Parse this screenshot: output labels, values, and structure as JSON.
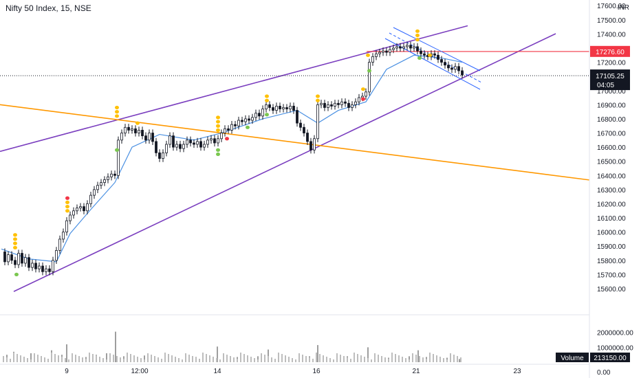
{
  "title": "Nifty 50 Index, 15, NSE",
  "chart_data": {
    "type": "candlestick",
    "currency": "INR",
    "price_axis": {
      "ticks": [
        15600,
        15700,
        15800,
        15900,
        16000,
        16100,
        16200,
        16300,
        16400,
        16500,
        16600,
        16700,
        16800,
        16900,
        17000,
        17100,
        17200,
        17300,
        17400,
        17500,
        17600
      ],
      "tick_labels": [
        "15600.00",
        "15700.00",
        "15800.00",
        "15900.00",
        "16000.00",
        "16100.00",
        "16200.00",
        "16300.00",
        "16400.00",
        "16500.00",
        "16600.00",
        "16700.00",
        "16800.00",
        "16900.00",
        "17000.00",
        "17100.00",
        "17200.00",
        "17300.00",
        "17400.00",
        "17500.00",
        "17600.00"
      ],
      "range": [
        15430,
        17640
      ]
    },
    "volume_axis": {
      "ticks": [
        1000000,
        2000000
      ],
      "tick_labels": [
        "1000000.00",
        "2000000.00"
      ],
      "zero_label": "0.00",
      "range": [
        0,
        3000000
      ]
    },
    "x_labels": [
      "9",
      "12:00",
      "14",
      "16",
      "21",
      "23"
    ],
    "price_tags": [
      {
        "label": "17276.60",
        "value": 17276.6,
        "color": "#f23645"
      },
      {
        "label": "17105.25",
        "sub": "04:05",
        "value": 17105.25,
        "color": "#131722"
      }
    ],
    "volume_label": "Volume",
    "volume_value": "213150.00",
    "close_series": [
      {
        "x": 0,
        "v": 15860
      },
      {
        "x": 5,
        "v": 15790
      },
      {
        "x": 10,
        "v": 15840
      },
      {
        "x": 15,
        "v": 15800
      },
      {
        "x": 20,
        "v": 15770
      },
      {
        "x": 25,
        "v": 15850
      },
      {
        "x": 30,
        "v": 15780
      },
      {
        "x": 35,
        "v": 15820
      },
      {
        "x": 40,
        "v": 15750
      },
      {
        "x": 45,
        "v": 15780
      },
      {
        "x": 50,
        "v": 15740
      },
      {
        "x": 55,
        "v": 15760
      },
      {
        "x": 60,
        "v": 15720
      },
      {
        "x": 65,
        "v": 15740
      },
      {
        "x": 70,
        "v": 15720
      },
      {
        "x": 75,
        "v": 15800
      },
      {
        "x": 80,
        "v": 15870
      },
      {
        "x": 85,
        "v": 15950
      },
      {
        "x": 90,
        "v": 16000
      },
      {
        "x": 95,
        "v": 16080
      },
      {
        "x": 100,
        "v": 16120
      },
      {
        "x": 105,
        "v": 16150
      },
      {
        "x": 110,
        "v": 16170
      },
      {
        "x": 115,
        "v": 16180
      },
      {
        "x": 120,
        "v": 16150
      },
      {
        "x": 125,
        "v": 16200
      },
      {
        "x": 130,
        "v": 16260
      },
      {
        "x": 135,
        "v": 16300
      },
      {
        "x": 140,
        "v": 16330
      },
      {
        "x": 145,
        "v": 16350
      },
      {
        "x": 150,
        "v": 16370
      },
      {
        "x": 155,
        "v": 16390
      },
      {
        "x": 160,
        "v": 16410
      },
      {
        "x": 165,
        "v": 16400
      },
      {
        "x": 170,
        "v": 16650
      },
      {
        "x": 175,
        "v": 16700
      },
      {
        "x": 180,
        "v": 16740
      },
      {
        "x": 185,
        "v": 16720
      },
      {
        "x": 190,
        "v": 16730
      },
      {
        "x": 195,
        "v": 16700
      },
      {
        "x": 200,
        "v": 16720
      },
      {
        "x": 205,
        "v": 16680
      },
      {
        "x": 210,
        "v": 16650
      },
      {
        "x": 215,
        "v": 16700
      },
      {
        "x": 220,
        "v": 16640
      },
      {
        "x": 225,
        "v": 16560
      },
      {
        "x": 230,
        "v": 16520
      },
      {
        "x": 235,
        "v": 16560
      },
      {
        "x": 240,
        "v": 16620
      },
      {
        "x": 245,
        "v": 16680
      },
      {
        "x": 250,
        "v": 16600
      },
      {
        "x": 255,
        "v": 16620
      },
      {
        "x": 260,
        "v": 16590
      },
      {
        "x": 265,
        "v": 16620
      },
      {
        "x": 270,
        "v": 16650
      },
      {
        "x": 275,
        "v": 16630
      },
      {
        "x": 280,
        "v": 16620
      },
      {
        "x": 285,
        "v": 16640
      },
      {
        "x": 290,
        "v": 16600
      },
      {
        "x": 295,
        "v": 16620
      },
      {
        "x": 300,
        "v": 16650
      },
      {
        "x": 305,
        "v": 16660
      },
      {
        "x": 310,
        "v": 16630
      },
      {
        "x": 315,
        "v": 16660
      },
      {
        "x": 320,
        "v": 16700
      },
      {
        "x": 325,
        "v": 16730
      },
      {
        "x": 330,
        "v": 16720
      },
      {
        "x": 335,
        "v": 16760
      },
      {
        "x": 340,
        "v": 16750
      },
      {
        "x": 345,
        "v": 16790
      },
      {
        "x": 350,
        "v": 16780
      },
      {
        "x": 355,
        "v": 16800
      },
      {
        "x": 360,
        "v": 16790
      },
      {
        "x": 365,
        "v": 16810
      },
      {
        "x": 370,
        "v": 16840
      },
      {
        "x": 375,
        "v": 16820
      },
      {
        "x": 380,
        "v": 16870
      },
      {
        "x": 385,
        "v": 16900
      },
      {
        "x": 390,
        "v": 16880
      },
      {
        "x": 395,
        "v": 16860
      },
      {
        "x": 400,
        "v": 16890
      },
      {
        "x": 405,
        "v": 16870
      },
      {
        "x": 410,
        "v": 16880
      },
      {
        "x": 415,
        "v": 16870
      },
      {
        "x": 420,
        "v": 16890
      },
      {
        "x": 425,
        "v": 16860
      },
      {
        "x": 430,
        "v": 16770
      },
      {
        "x": 435,
        "v": 16740
      },
      {
        "x": 440,
        "v": 16700
      },
      {
        "x": 445,
        "v": 16640
      },
      {
        "x": 450,
        "v": 16580
      },
      {
        "x": 455,
        "v": 16660
      },
      {
        "x": 460,
        "v": 16900
      },
      {
        "x": 465,
        "v": 16910
      },
      {
        "x": 470,
        "v": 16880
      },
      {
        "x": 475,
        "v": 16900
      },
      {
        "x": 480,
        "v": 16890
      },
      {
        "x": 485,
        "v": 16910
      },
      {
        "x": 490,
        "v": 16900
      },
      {
        "x": 495,
        "v": 16920
      },
      {
        "x": 500,
        "v": 16910
      },
      {
        "x": 505,
        "v": 16880
      },
      {
        "x": 510,
        "v": 16900
      },
      {
        "x": 515,
        "v": 16920
      },
      {
        "x": 520,
        "v": 16950
      },
      {
        "x": 525,
        "v": 16960
      },
      {
        "x": 530,
        "v": 16990
      },
      {
        "x": 535,
        "v": 17200
      },
      {
        "x": 540,
        "v": 17240
      },
      {
        "x": 545,
        "v": 17260
      },
      {
        "x": 550,
        "v": 17270
      },
      {
        "x": 555,
        "v": 17280
      },
      {
        "x": 560,
        "v": 17270
      },
      {
        "x": 565,
        "v": 17290
      },
      {
        "x": 570,
        "v": 17300
      },
      {
        "x": 575,
        "v": 17310
      },
      {
        "x": 580,
        "v": 17300
      },
      {
        "x": 585,
        "v": 17310
      },
      {
        "x": 590,
        "v": 17320
      },
      {
        "x": 595,
        "v": 17300
      },
      {
        "x": 600,
        "v": 17310
      },
      {
        "x": 605,
        "v": 17280
      },
      {
        "x": 610,
        "v": 17260
      },
      {
        "x": 615,
        "v": 17250
      },
      {
        "x": 620,
        "v": 17240
      },
      {
        "x": 625,
        "v": 17260
      },
      {
        "x": 630,
        "v": 17250
      },
      {
        "x": 635,
        "v": 17220
      },
      {
        "x": 640,
        "v": 17200
      },
      {
        "x": 645,
        "v": 17180
      },
      {
        "x": 650,
        "v": 17160
      },
      {
        "x": 655,
        "v": 17150
      },
      {
        "x": 660,
        "v": 17170
      },
      {
        "x": 665,
        "v": 17140
      },
      {
        "x": 670,
        "v": 17110
      }
    ],
    "moving_average": [
      {
        "x": 0,
        "v": 15880
      },
      {
        "x": 40,
        "v": 15810
      },
      {
        "x": 80,
        "v": 15790
      },
      {
        "x": 100,
        "v": 15990
      },
      {
        "x": 130,
        "v": 16160
      },
      {
        "x": 165,
        "v": 16350
      },
      {
        "x": 190,
        "v": 16600
      },
      {
        "x": 230,
        "v": 16690
      },
      {
        "x": 280,
        "v": 16650
      },
      {
        "x": 320,
        "v": 16700
      },
      {
        "x": 380,
        "v": 16800
      },
      {
        "x": 430,
        "v": 16860
      },
      {
        "x": 460,
        "v": 16770
      },
      {
        "x": 490,
        "v": 16860
      },
      {
        "x": 530,
        "v": 16920
      },
      {
        "x": 560,
        "v": 17150
      },
      {
        "x": 600,
        "v": 17250
      },
      {
        "x": 640,
        "v": 17230
      },
      {
        "x": 670,
        "v": 17200
      }
    ],
    "trend_lines": [
      {
        "name": "upper-channel",
        "color": "#7b3fbf",
        "x1": 0,
        "v1": 16570,
        "x2": 680,
        "v2": 17458
      },
      {
        "name": "lower-channel",
        "color": "#7b3fbf",
        "x1": 20,
        "v1": 15580,
        "x2": 808,
        "v2": 17402
      },
      {
        "name": "support-line",
        "color": "#ff9800",
        "x1": 0,
        "v1": 16900,
        "x2": 857,
        "v2": 16368
      },
      {
        "name": "resistance-level",
        "color": "#f23645",
        "x1": 533,
        "v1": 17276,
        "x2": 857,
        "v2": 17276
      }
    ],
    "volume_bars": [
      {
        "x": 10,
        "v": 500000
      },
      {
        "x": 20,
        "v": 700000
      },
      {
        "x": 30,
        "v": 450000
      },
      {
        "x": 45,
        "v": 600000
      },
      {
        "x": 60,
        "v": 350000
      },
      {
        "x": 75,
        "v": 800000
      },
      {
        "x": 90,
        "v": 500000
      },
      {
        "x": 97,
        "v": 1200000
      },
      {
        "x": 110,
        "v": 400000
      },
      {
        "x": 125,
        "v": 350000
      },
      {
        "x": 140,
        "v": 500000
      },
      {
        "x": 155,
        "v": 600000
      },
      {
        "x": 168,
        "v": 2050000
      },
      {
        "x": 180,
        "v": 400000
      },
      {
        "x": 195,
        "v": 300000
      },
      {
        "x": 210,
        "v": 450000
      },
      {
        "x": 225,
        "v": 350000
      },
      {
        "x": 240,
        "v": 600000
      },
      {
        "x": 255,
        "v": 300000
      },
      {
        "x": 270,
        "v": 250000
      },
      {
        "x": 285,
        "v": 350000
      },
      {
        "x": 300,
        "v": 300000
      },
      {
        "x": 316,
        "v": 1050000
      },
      {
        "x": 330,
        "v": 400000
      },
      {
        "x": 345,
        "v": 350000
      },
      {
        "x": 360,
        "v": 300000
      },
      {
        "x": 375,
        "v": 400000
      },
      {
        "x": 390,
        "v": 850000
      },
      {
        "x": 405,
        "v": 300000
      },
      {
        "x": 420,
        "v": 350000
      },
      {
        "x": 435,
        "v": 600000
      },
      {
        "x": 450,
        "v": 400000
      },
      {
        "x": 462,
        "v": 1150000
      },
      {
        "x": 475,
        "v": 300000
      },
      {
        "x": 490,
        "v": 350000
      },
      {
        "x": 505,
        "v": 400000
      },
      {
        "x": 520,
        "v": 450000
      },
      {
        "x": 535,
        "v": 1000000
      },
      {
        "x": 550,
        "v": 350000
      },
      {
        "x": 565,
        "v": 300000
      },
      {
        "x": 580,
        "v": 450000
      },
      {
        "x": 595,
        "v": 400000
      },
      {
        "x": 608,
        "v": 800000
      },
      {
        "x": 620,
        "v": 350000
      },
      {
        "x": 635,
        "v": 250000
      },
      {
        "x": 650,
        "v": 300000
      },
      {
        "x": 660,
        "v": 200000
      },
      {
        "x": 668,
        "v": 213150
      }
    ],
    "signal_dots": [
      {
        "x": 22,
        "v": 15980,
        "color": "#ffc107"
      },
      {
        "x": 22,
        "v": 15950,
        "color": "#ffc107"
      },
      {
        "x": 22,
        "v": 15920,
        "color": "#ffc107"
      },
      {
        "x": 22,
        "v": 15890,
        "color": "#ffc107"
      },
      {
        "x": 24,
        "v": 15700,
        "color": "#7ac74f"
      },
      {
        "x": 98,
        "v": 16240,
        "color": "#f23645"
      },
      {
        "x": 98,
        "v": 16210,
        "color": "#ffc107"
      },
      {
        "x": 98,
        "v": 16180,
        "color": "#ffc107"
      },
      {
        "x": 98,
        "v": 16150,
        "color": "#ffc107"
      },
      {
        "x": 170,
        "v": 16880,
        "color": "#ffc107"
      },
      {
        "x": 170,
        "v": 16850,
        "color": "#ffc107"
      },
      {
        "x": 170,
        "v": 16820,
        "color": "#ffc107"
      },
      {
        "x": 170,
        "v": 16580,
        "color": "#7ac74f"
      },
      {
        "x": 200,
        "v": 16770,
        "color": "#ffc107"
      },
      {
        "x": 317,
        "v": 16810,
        "color": "#ffc107"
      },
      {
        "x": 317,
        "v": 16780,
        "color": "#ffc107"
      },
      {
        "x": 317,
        "v": 16750,
        "color": "#ffc107"
      },
      {
        "x": 317,
        "v": 16720,
        "color": "#ffc107"
      },
      {
        "x": 317,
        "v": 16580,
        "color": "#7ac74f"
      },
      {
        "x": 317,
        "v": 16550,
        "color": "#7ac74f"
      },
      {
        "x": 360,
        "v": 16740,
        "color": "#7ac74f"
      },
      {
        "x": 330,
        "v": 16660,
        "color": "#f23645"
      },
      {
        "x": 388,
        "v": 16960,
        "color": "#ffc107"
      },
      {
        "x": 388,
        "v": 16930,
        "color": "#ffc107"
      },
      {
        "x": 388,
        "v": 16830,
        "color": "#7ac74f"
      },
      {
        "x": 462,
        "v": 16960,
        "color": "#ffc107"
      },
      {
        "x": 462,
        "v": 16930,
        "color": "#ffc107"
      },
      {
        "x": 528,
        "v": 17010,
        "color": "#ffc107"
      },
      {
        "x": 528,
        "v": 16940,
        "color": "#f23645"
      },
      {
        "x": 535,
        "v": 17250,
        "color": "#ffc107"
      },
      {
        "x": 537,
        "v": 17140,
        "color": "#7ac74f"
      },
      {
        "x": 607,
        "v": 17420,
        "color": "#ffc107"
      },
      {
        "x": 607,
        "v": 17390,
        "color": "#ffc107"
      },
      {
        "x": 607,
        "v": 17360,
        "color": "#ffc107"
      },
      {
        "x": 610,
        "v": 17230,
        "color": "#7ac74f"
      },
      {
        "x": 625,
        "v": 17250,
        "color": "#ffc107"
      }
    ]
  }
}
